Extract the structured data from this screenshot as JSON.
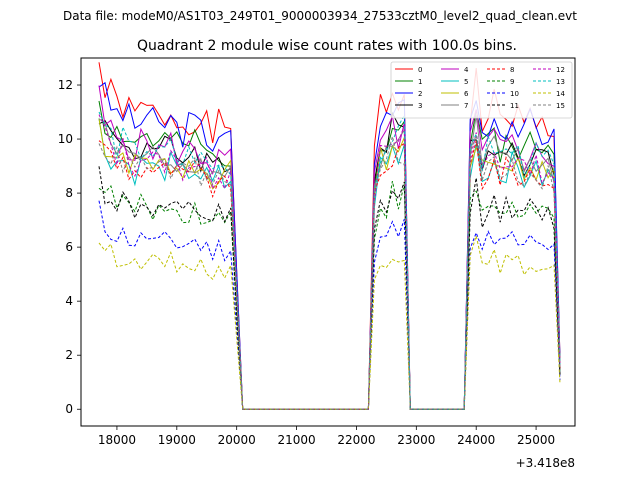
{
  "chart_data": {
    "type": "line",
    "suptitle": "Data file: modeM0/AS1T03_249T01_9000003934_27533cztM0_level2_quad_clean.evt",
    "title": "Quadrant 2 module wise count rates with 100.0s bins.",
    "xlabel": "",
    "ylabel": "",
    "x_offset_label": "+3.418e8",
    "xlim": [
      17400,
      25650
    ],
    "ylim": [
      -0.62,
      13.0
    ],
    "x_ticks": [
      18000,
      19000,
      20000,
      21000,
      22000,
      23000,
      24000,
      25000
    ],
    "y_ticks": [
      0,
      2,
      4,
      6,
      8,
      10,
      12
    ],
    "legend": {
      "position": "top-right",
      "columns": 4
    },
    "x_segment_1": [
      17700,
      17800,
      17900,
      18000,
      18100,
      18200,
      18300,
      18400,
      18500,
      18600,
      18700,
      18800,
      18900,
      19000,
      19100,
      19200,
      19300,
      19400,
      19500,
      19600,
      19700,
      19800,
      19900,
      20000,
      20100
    ],
    "x_gap_1": [
      20200,
      22200
    ],
    "x_segment_2": [
      22200,
      22300,
      22400,
      22500,
      22600,
      22700,
      22800,
      22900
    ],
    "x_gap_2": [
      22900,
      23800
    ],
    "x_segment_3": [
      23800,
      23900,
      24000,
      24100,
      24200,
      24300,
      24400,
      24500,
      24600,
      24700,
      24800,
      24900,
      25000,
      25100,
      25200,
      25300,
      25400
    ],
    "series": [
      {
        "name": "0",
        "color": "#ff0000",
        "dash": "solid",
        "level": 11.0,
        "seed": 1
      },
      {
        "name": "1",
        "color": "#008000",
        "dash": "solid",
        "level": 10.0,
        "seed": 2
      },
      {
        "name": "2",
        "color": "#0000ff",
        "dash": "solid",
        "level": 10.7,
        "seed": 3
      },
      {
        "name": "3",
        "color": "#000000",
        "dash": "solid",
        "level": 9.7,
        "seed": 4
      },
      {
        "name": "4",
        "color": "#bf00bf",
        "dash": "solid",
        "level": 9.8,
        "seed": 5
      },
      {
        "name": "5",
        "color": "#00bfbf",
        "dash": "solid",
        "level": 9.0,
        "seed": 6
      },
      {
        "name": "6",
        "color": "#bfbf00",
        "dash": "solid",
        "level": 9.2,
        "seed": 7
      },
      {
        "name": "7",
        "color": "#808080",
        "dash": "solid",
        "level": 9.4,
        "seed": 8
      },
      {
        "name": "8",
        "color": "#ff0000",
        "dash": "dashed",
        "level": 8.9,
        "seed": 9
      },
      {
        "name": "9",
        "color": "#008000",
        "dash": "dashed",
        "level": 7.5,
        "seed": 10
      },
      {
        "name": "10",
        "color": "#0000ff",
        "dash": "dashed",
        "level": 6.3,
        "seed": 11
      },
      {
        "name": "11",
        "color": "#000000",
        "dash": "dashed",
        "level": 7.5,
        "seed": 12
      },
      {
        "name": "12",
        "color": "#bf00bf",
        "dash": "dashed",
        "level": 9.3,
        "seed": 13
      },
      {
        "name": "13",
        "color": "#00bfbf",
        "dash": "dashed",
        "level": 9.6,
        "seed": 14
      },
      {
        "name": "14",
        "color": "#bfbf00",
        "dash": "dashed",
        "level": 5.5,
        "seed": 15
      },
      {
        "name": "15",
        "color": "#808080",
        "dash": "dashed",
        "level": 9.0,
        "seed": 16
      }
    ],
    "profile_segment_1": [
      1.16,
      1.07,
      1.05,
      1.02,
      1.03,
      1.0,
      0.98,
      1.0,
      1.02,
      0.99,
      0.97,
      0.99,
      1.0,
      0.97,
      0.96,
      0.98,
      0.99,
      0.96,
      0.95,
      0.92,
      0.96,
      0.92,
      0.95,
      0.47,
      0.0
    ],
    "profile_segment_2": [
      0.0,
      0.86,
      1.0,
      1.0,
      1.07,
      1.03,
      1.07,
      0.0
    ],
    "profile_segment_3": [
      0.0,
      1.0,
      1.1,
      0.95,
      1.0,
      1.02,
      0.97,
      0.99,
      1.0,
      0.98,
      0.94,
      0.99,
      0.97,
      0.95,
      0.96,
      0.93,
      0.17
    ]
  }
}
